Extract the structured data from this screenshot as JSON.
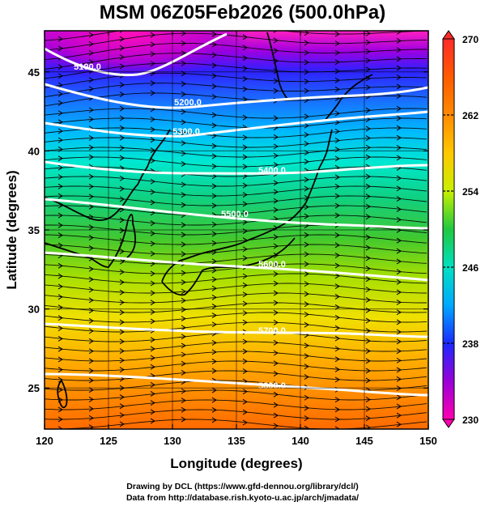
{
  "title": "MSM 06Z05Feb2026 (500.0hPa)",
  "xlabel": "Longitude (degrees)",
  "ylabel": "Latitude  (degrees)",
  "credit_line1": "Drawing by DCL (https://www.gfd-dennou.org/library/dcl/)",
  "credit_line2": "Data from http://database.rish.kyoto-u.ac.jp/arch/jmadata/",
  "map": {
    "lon_range": [
      120,
      150
    ],
    "lat_range": [
      22.4,
      47.6
    ],
    "lon_ticks": [
      120,
      125,
      130,
      135,
      140,
      145,
      150
    ],
    "lat_ticks": [
      25,
      30,
      35,
      40,
      45
    ],
    "grid": true
  },
  "colorbar": {
    "min": 230,
    "max": 270,
    "tick_labels": [
      "270",
      "262",
      "254",
      "246",
      "238",
      "230"
    ],
    "tick_values": [
      270,
      262,
      254,
      246,
      238,
      230
    ]
  },
  "contours": [
    {
      "label": "5100.0",
      "value": 5100
    },
    {
      "label": "5200.0",
      "value": 5200
    },
    {
      "label": "5300.0",
      "value": 5300
    },
    {
      "label": "5400.0",
      "value": 5400
    },
    {
      "label": "5500.0",
      "value": 5500
    },
    {
      "label": "5600.0",
      "value": 5600
    },
    {
      "label": "5700.0",
      "value": 5700
    },
    {
      "label": "5800.0",
      "value": 5800
    }
  ],
  "colors": {
    "contour": "#ffffff",
    "coast": "#000000",
    "arrows": "#000000"
  }
}
